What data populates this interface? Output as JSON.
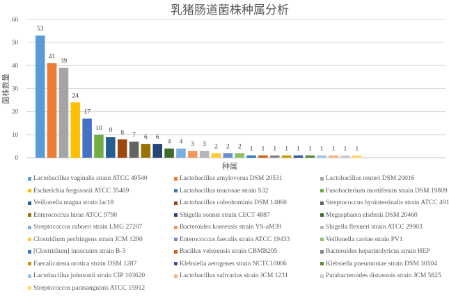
{
  "chart_data": {
    "type": "bar",
    "title": "乳猪肠道菌株种属分析",
    "xlabel": "种属",
    "ylabel": "菌株数量",
    "ylim": [
      0,
      60
    ],
    "yticks": [
      0,
      10,
      20,
      30,
      40,
      50,
      60
    ],
    "grid": true,
    "legend_position": "bottom",
    "data_labels": true,
    "categories": [
      "Lactobacillus vaginalis strain ATCC 49540",
      "Lactobacillus amylovorus DSM 20531",
      "Lactobacillus reuteri DSM 20016",
      "Escherichia fergusonii ATCC 35469",
      "Lactobacillus mucosae strain S32",
      "Fusobacterium mortiferum strain DSM 19809",
      "Veillonella magna strain lac18",
      "Lactobacillus coleohominis DSM 14060",
      "Streptococcus hyointestinalis strain ATCC 49169",
      "Enterococcus hirae ATCC 9790",
      "Shigella sonnei strain CECT 4887",
      "Megasphaera elsdenii DSM 20460",
      "Streptococcus rubneri strain LMG 27207",
      "Bacteroides koreensis strain YS-aM39",
      "Shigella flexneri strain ATCC 29903",
      "Clostridium perfringens strain JCM 1290",
      "Enterococcus faecalis strain ATCC 19433",
      "Veillonella caviae strain PV1",
      "[Clostridium] innocuum strain B-3",
      "Bacillus velezensis strain CBMB205",
      "Bacteroides heparinolyticus strain HEP",
      "Faecalicatena orotica strain DSM 1287",
      "Klebsiella aerogenes strain NCTC10006",
      "Klebsiella pneumoniae strain DSM 30104",
      "Lactobacillus johnsonii strain CIP 103620",
      "Lactobacillus salivarius strain JCM 1231",
      "Parabacteroides distasonis strain JCM 5825",
      "Streptococcus parasanguinis ATCC 15912"
    ],
    "values": [
      53,
      41,
      39,
      24,
      17,
      10,
      9,
      8,
      7,
      6,
      6,
      4,
      4,
      3,
      3,
      2,
      2,
      2,
      1,
      1,
      1,
      1,
      1,
      1,
      1,
      1,
      1,
      1
    ],
    "colors": [
      "#5B9BD5",
      "#ED7D31",
      "#A5A5A5",
      "#FFC000",
      "#4472C4",
      "#70AD47",
      "#255E91",
      "#9E480E",
      "#636363",
      "#997300",
      "#264478",
      "#43682B",
      "#7CAFDD",
      "#F1975A",
      "#B7B7B7",
      "#FFCD33",
      "#698ED0",
      "#8CC168",
      "#327DC2",
      "#D26012",
      "#848484",
      "#CC9A00",
      "#335AA1",
      "#5A8A39",
      "#9DC3E6",
      "#F4B183",
      "#C9C9C9",
      "#FFD966"
    ]
  }
}
